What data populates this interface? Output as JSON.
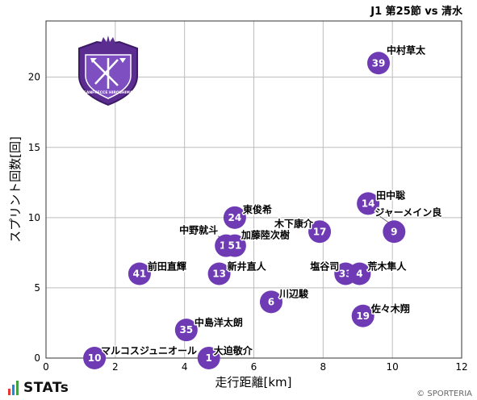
{
  "chart_data": {
    "type": "scatter",
    "title": "J1 第25節 vs 清水",
    "xlabel": "走行距離[km]",
    "ylabel": "スプリント回数[回]",
    "xlim": [
      0,
      12
    ],
    "ylim": [
      0,
      24
    ],
    "xticks": [
      0,
      2,
      4,
      6,
      8,
      10,
      12
    ],
    "yticks": [
      0,
      5,
      10,
      15,
      20
    ],
    "grid": true,
    "marker_color": "#6e3bb4",
    "points": [
      {
        "number": "39",
        "name": "中村草太",
        "x": 9.6,
        "y": 21
      },
      {
        "number": "14",
        "name": "田中聡",
        "x": 9.3,
        "y": 11
      },
      {
        "number": "9",
        "name": "ジャーメイン良",
        "x": 10.05,
        "y": 9
      },
      {
        "number": "17",
        "name": "木下康介",
        "x": 7.9,
        "y": 9
      },
      {
        "number": "24",
        "name": "東俊希",
        "x": 5.45,
        "y": 10
      },
      {
        "number": "15",
        "name": "中野就斗",
        "x": 5.2,
        "y": 8
      },
      {
        "number": "51",
        "name": "加藤陸次樹",
        "x": 5.45,
        "y": 8
      },
      {
        "number": "41",
        "name": "前田直輝",
        "x": 2.7,
        "y": 6
      },
      {
        "number": "13",
        "name": "新井直人",
        "x": 5.0,
        "y": 6
      },
      {
        "number": "33",
        "name": "塩谷司",
        "x": 8.65,
        "y": 6
      },
      {
        "number": "4",
        "name": "荒木隼人",
        "x": 9.05,
        "y": 6
      },
      {
        "number": "6",
        "name": "川辺駿",
        "x": 6.5,
        "y": 4
      },
      {
        "number": "19",
        "name": "佐々木翔",
        "x": 9.15,
        "y": 3
      },
      {
        "number": "35",
        "name": "中島洋太朗",
        "x": 4.05,
        "y": 2
      },
      {
        "number": "10",
        "name": "マルコスジュニオール",
        "x": 1.4,
        "y": 0
      },
      {
        "number": "1",
        "name": "大迫敬介",
        "x": 4.7,
        "y": 0
      }
    ]
  },
  "logo": {
    "name": "sanfrecce-hiroshima-crest",
    "text": "SANFRECCE HIROSHIMA",
    "color": "#5b2d91"
  },
  "footer": {
    "brand": "STATs",
    "copyright": "© SPORTERIA"
  }
}
